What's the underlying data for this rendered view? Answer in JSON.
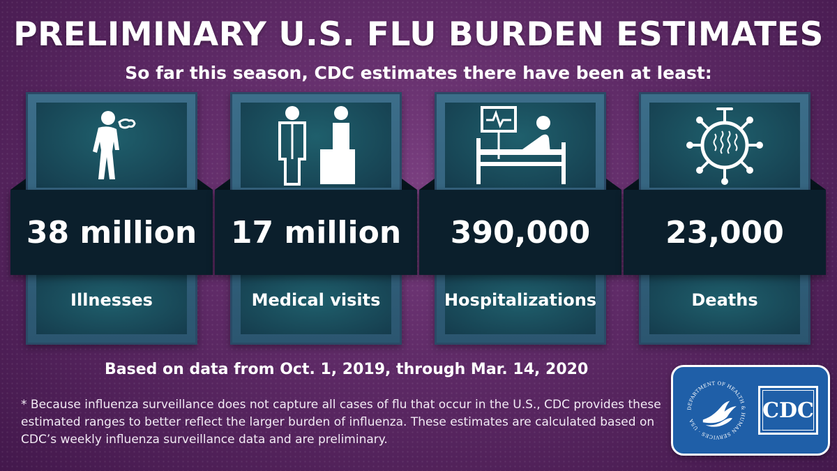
{
  "title": "PRELIMINARY U.S. FLU BURDEN ESTIMATES",
  "subtitle": "So far this season, CDC estimates there have been at least:",
  "cards": [
    {
      "value": "38 million",
      "label": "Illnesses",
      "icon": "sick-person-icon"
    },
    {
      "value": "17 million",
      "label": "Medical visits",
      "icon": "doctor-patient-icon"
    },
    {
      "value": "390,000",
      "label": "Hospitalizations",
      "icon": "hospital-bed-icon"
    },
    {
      "value": "23,000",
      "label": "Deaths",
      "icon": "virus-icon"
    }
  ],
  "date_note": "Based on data from Oct. 1, 2019, through Mar. 14, 2020",
  "footnote": "* Because influenza surveillance does not capture all cases of flu that occur in the U.S., CDC provides these estimated ranges to better reflect the larger burden of influenza. These estimates are calculated based on CDC’s weekly influenza surveillance data and are preliminary.",
  "logo": {
    "seal_text": "DEPARTMENT OF HEALTH & HUMAN SERVICES · USA",
    "cdc_text": "CDC"
  },
  "colors": {
    "background": "#5e2a66",
    "card": "#2b5670",
    "band": "#0b1f2c",
    "logo": "#1f5fa8"
  }
}
